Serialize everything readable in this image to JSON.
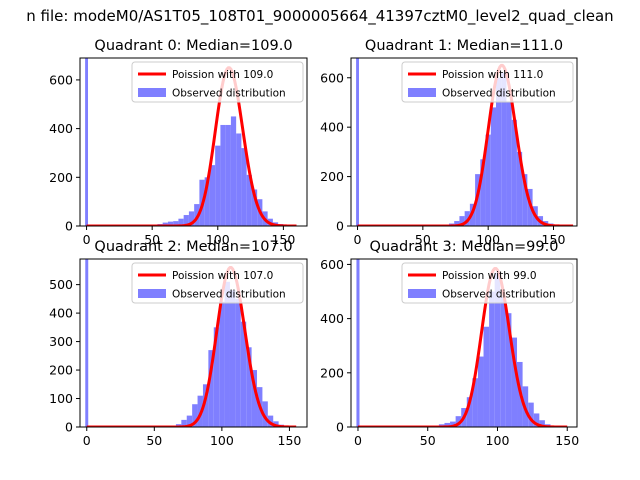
{
  "figure": {
    "suptitle": "n file: modeM0/AS1T05_108T01_9000005664_41397cztM0_level2_quad_clean"
  },
  "colors": {
    "poisson": "#ff0000",
    "observed": "#7f7fff",
    "background": "#ffffff",
    "axes": "#000000"
  },
  "chart_data": [
    {
      "type": "histogram+line",
      "title": "Quadrant 0: Median=109.0",
      "legend": [
        "Poission with 109.0",
        "Observed distribution"
      ],
      "legend_loc": "upper right",
      "xticks": [
        0,
        50,
        100,
        150
      ],
      "yticks": [
        0,
        200,
        400,
        600
      ],
      "xlim": [
        -5,
        168
      ],
      "ylim": [
        0,
        690
      ],
      "series": [
        {
          "name": "Poission with 109.0",
          "kind": "line",
          "mean": 109.0,
          "peak": 650,
          "x_range": [
            0,
            160
          ]
        },
        {
          "name": "Observed distribution",
          "kind": "hist",
          "bin_width": 4,
          "bins": [
            {
              "x": 0,
              "count": 690
            },
            {
              "x": 56,
              "count": 8
            },
            {
              "x": 60,
              "count": 14
            },
            {
              "x": 64,
              "count": 18
            },
            {
              "x": 68,
              "count": 20
            },
            {
              "x": 72,
              "count": 30
            },
            {
              "x": 76,
              "count": 45
            },
            {
              "x": 80,
              "count": 60
            },
            {
              "x": 84,
              "count": 90
            },
            {
              "x": 88,
              "count": 190
            },
            {
              "x": 92,
              "count": 200
            },
            {
              "x": 96,
              "count": 250
            },
            {
              "x": 100,
              "count": 330
            },
            {
              "x": 104,
              "count": 415
            },
            {
              "x": 108,
              "count": 415
            },
            {
              "x": 112,
              "count": 450
            },
            {
              "x": 116,
              "count": 380
            },
            {
              "x": 120,
              "count": 320
            },
            {
              "x": 124,
              "count": 210
            },
            {
              "x": 128,
              "count": 150
            },
            {
              "x": 132,
              "count": 110
            },
            {
              "x": 136,
              "count": 60
            },
            {
              "x": 140,
              "count": 30
            },
            {
              "x": 144,
              "count": 15
            },
            {
              "x": 148,
              "count": 8
            }
          ]
        }
      ]
    },
    {
      "type": "histogram+line",
      "title": "Quadrant 1: Median=111.0",
      "legend": [
        "Poission with 111.0",
        "Observed distribution"
      ],
      "legend_loc": "upper right",
      "xticks": [
        0,
        50,
        100,
        150
      ],
      "yticks": [
        0,
        200,
        400,
        600
      ],
      "xlim": [
        -5,
        168
      ],
      "ylim": [
        0,
        680
      ],
      "series": [
        {
          "name": "Poission with 111.0",
          "kind": "line",
          "mean": 111.0,
          "peak": 650,
          "x_range": [
            0,
            165
          ]
        },
        {
          "name": "Observed distribution",
          "kind": "hist",
          "bin_width": 4,
          "bins": [
            {
              "x": 0,
              "count": 680
            },
            {
              "x": 72,
              "count": 10
            },
            {
              "x": 76,
              "count": 20
            },
            {
              "x": 80,
              "count": 40
            },
            {
              "x": 84,
              "count": 60
            },
            {
              "x": 88,
              "count": 90
            },
            {
              "x": 92,
              "count": 210
            },
            {
              "x": 96,
              "count": 270
            },
            {
              "x": 100,
              "count": 370
            },
            {
              "x": 104,
              "count": 480
            },
            {
              "x": 108,
              "count": 600
            },
            {
              "x": 112,
              "count": 620
            },
            {
              "x": 116,
              "count": 500
            },
            {
              "x": 120,
              "count": 430
            },
            {
              "x": 124,
              "count": 300
            },
            {
              "x": 128,
              "count": 210
            },
            {
              "x": 132,
              "count": 150
            },
            {
              "x": 136,
              "count": 80
            },
            {
              "x": 140,
              "count": 40
            },
            {
              "x": 144,
              "count": 20
            },
            {
              "x": 148,
              "count": 10
            }
          ]
        }
      ]
    },
    {
      "type": "histogram+line",
      "title": "Quadrant 2: Median=107.0",
      "legend": [
        "Poission with 107.0",
        "Observed distribution"
      ],
      "legend_loc": "upper right",
      "xticks": [
        0,
        50,
        100,
        150
      ],
      "yticks": [
        0,
        100,
        200,
        300,
        400,
        500
      ],
      "xlim": [
        -5,
        163
      ],
      "ylim": [
        0,
        590
      ],
      "series": [
        {
          "name": "Poission with 107.0",
          "kind": "line",
          "mean": 107.0,
          "peak": 560,
          "x_range": [
            0,
            155
          ]
        },
        {
          "name": "Observed distribution",
          "kind": "hist",
          "bin_width": 4,
          "bins": [
            {
              "x": 0,
              "count": 590
            },
            {
              "x": 64,
              "count": 5
            },
            {
              "x": 68,
              "count": 10
            },
            {
              "x": 72,
              "count": 25
            },
            {
              "x": 76,
              "count": 40
            },
            {
              "x": 80,
              "count": 80
            },
            {
              "x": 84,
              "count": 110
            },
            {
              "x": 88,
              "count": 150
            },
            {
              "x": 92,
              "count": 270
            },
            {
              "x": 96,
              "count": 350
            },
            {
              "x": 100,
              "count": 440
            },
            {
              "x": 104,
              "count": 510
            },
            {
              "x": 108,
              "count": 480
            },
            {
              "x": 112,
              "count": 450
            },
            {
              "x": 116,
              "count": 370
            },
            {
              "x": 120,
              "count": 280
            },
            {
              "x": 124,
              "count": 200
            },
            {
              "x": 128,
              "count": 140
            },
            {
              "x": 132,
              "count": 90
            },
            {
              "x": 136,
              "count": 40
            },
            {
              "x": 140,
              "count": 20
            },
            {
              "x": 144,
              "count": 8
            }
          ]
        }
      ]
    },
    {
      "type": "histogram+line",
      "title": "Quadrant 3: Median=99.0",
      "legend": [
        "Poission with 99.0",
        "Observed distribution"
      ],
      "legend_loc": "upper right",
      "xticks": [
        0,
        50,
        100,
        150
      ],
      "yticks": [
        0,
        200,
        400,
        600
      ],
      "xlim": [
        -5,
        157
      ],
      "ylim": [
        0,
        620
      ],
      "series": [
        {
          "name": "Poission with 99.0",
          "kind": "line",
          "mean": 99.0,
          "peak": 585,
          "x_range": [
            0,
            150
          ]
        },
        {
          "name": "Observed distribution",
          "kind": "hist",
          "bin_width": 4,
          "bins": [
            {
              "x": 0,
              "count": 620
            },
            {
              "x": 56,
              "count": 5
            },
            {
              "x": 60,
              "count": 10
            },
            {
              "x": 64,
              "count": 15
            },
            {
              "x": 68,
              "count": 20
            },
            {
              "x": 72,
              "count": 40
            },
            {
              "x": 76,
              "count": 70
            },
            {
              "x": 80,
              "count": 110
            },
            {
              "x": 84,
              "count": 180
            },
            {
              "x": 88,
              "count": 260
            },
            {
              "x": 92,
              "count": 370
            },
            {
              "x": 96,
              "count": 500
            },
            {
              "x": 100,
              "count": 570
            },
            {
              "x": 104,
              "count": 480
            },
            {
              "x": 108,
              "count": 420
            },
            {
              "x": 112,
              "count": 330
            },
            {
              "x": 116,
              "count": 240
            },
            {
              "x": 120,
              "count": 150
            },
            {
              "x": 124,
              "count": 90
            },
            {
              "x": 128,
              "count": 50
            },
            {
              "x": 132,
              "count": 25
            },
            {
              "x": 136,
              "count": 10
            }
          ]
        }
      ]
    }
  ]
}
